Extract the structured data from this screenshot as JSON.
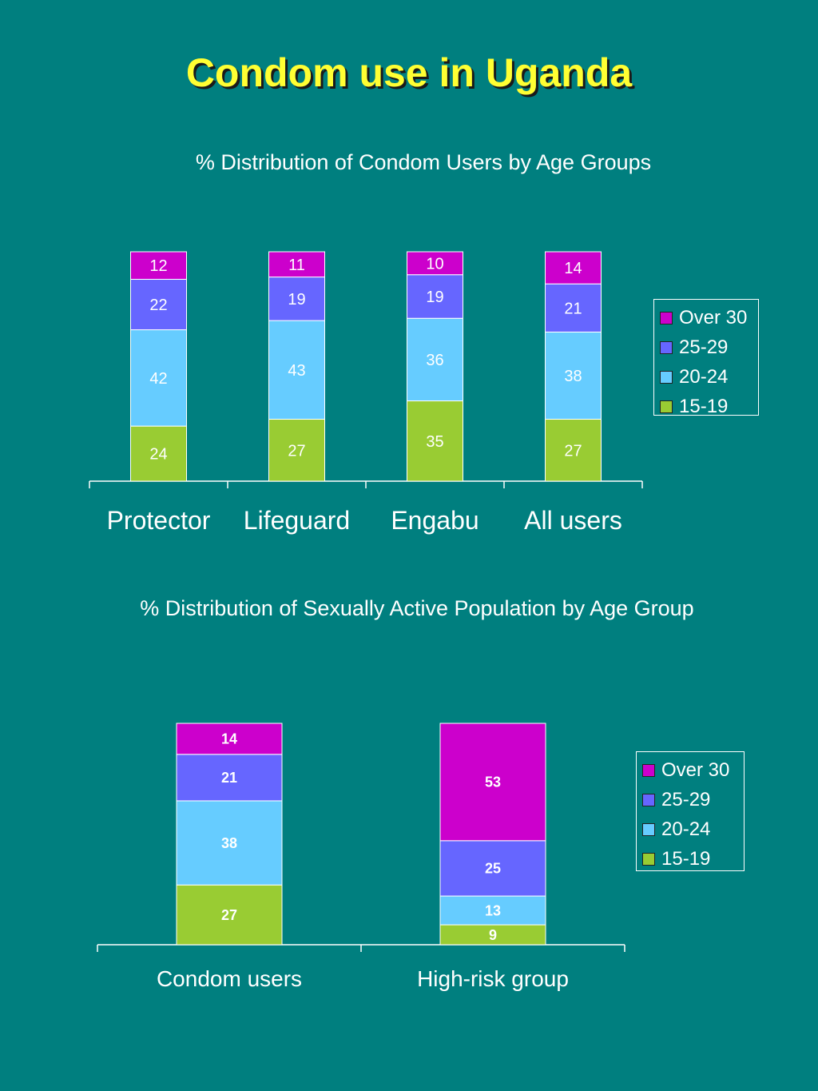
{
  "slide": {
    "title": "Condom use in Uganda"
  },
  "chart_data": [
    {
      "type": "bar",
      "stacked": true,
      "title": "% Distribution of Condom Users by Age Groups",
      "categories": [
        "Protector",
        "Lifeguard",
        "Engabu",
        "All users"
      ],
      "series": [
        {
          "name": "15-19",
          "color": "#99cc33",
          "values": [
            24,
            27,
            35,
            27
          ]
        },
        {
          "name": "20-24",
          "color": "#66ccff",
          "values": [
            42,
            43,
            36,
            38
          ]
        },
        {
          "name": "25-29",
          "color": "#6666ff",
          "values": [
            22,
            19,
            19,
            21
          ]
        },
        {
          "name": "Over 30",
          "color": "#cc00cc",
          "values": [
            12,
            11,
            10,
            14
          ]
        }
      ],
      "legend": {
        "position": "right",
        "items": [
          "Over 30",
          "25-29",
          "20-24",
          "15-19"
        ]
      },
      "grid": false,
      "data_labels": true
    },
    {
      "type": "bar",
      "stacked": true,
      "title": "% Distribution of Sexually Active Population by Age Group",
      "categories": [
        "Condom users",
        "High-risk group"
      ],
      "series": [
        {
          "name": "15-19",
          "color": "#99cc33",
          "values": [
            27,
            9
          ]
        },
        {
          "name": "20-24",
          "color": "#66ccff",
          "values": [
            38,
            13
          ]
        },
        {
          "name": "25-29",
          "color": "#6666ff",
          "values": [
            21,
            25
          ]
        },
        {
          "name": "Over 30",
          "color": "#cc00cc",
          "values": [
            14,
            53
          ]
        }
      ],
      "legend": {
        "position": "right",
        "items": [
          "Over 30",
          "25-29",
          "20-24",
          "15-19"
        ]
      },
      "grid": false,
      "data_labels": true
    }
  ]
}
